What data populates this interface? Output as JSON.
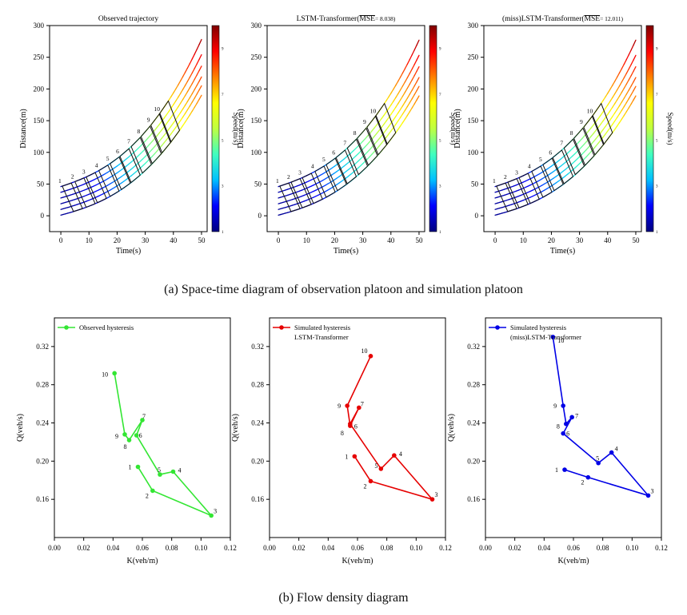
{
  "captions": {
    "a": "(a) Space-time diagram of observation platoon and simulation platoon",
    "b": "(b) Flow density diagram"
  },
  "colorbar": {
    "label": "Speed(m/s)",
    "tick_labels": [
      "1",
      "3",
      "5",
      "7",
      "9"
    ],
    "colors": [
      "#00007f",
      "#0000ff",
      "#00bfff",
      "#40ffbf",
      "#bfff40",
      "#ffff00",
      "#ff8000",
      "#ff0000",
      "#7f0000"
    ]
  },
  "chart_data": [
    {
      "type": "line",
      "title": "Observed trajectory",
      "xlabel": "Time(s)",
      "ylabel": "Distance(m)",
      "xlim": [
        -4,
        52
      ],
      "ylim": [
        -25,
        300
      ],
      "xticks": [
        "0",
        "10",
        "20",
        "30",
        "40",
        "50"
      ],
      "yticks": [
        "0",
        "50",
        "100",
        "150",
        "200",
        "250",
        "300"
      ],
      "vehicles": [
        "1",
        "2",
        "3",
        "4",
        "5",
        "6",
        "7",
        "8",
        "9",
        "10"
      ],
      "series": [
        {
          "name": "1",
          "start": 46
        },
        {
          "name": "2",
          "start": 37
        },
        {
          "name": "3",
          "start": 28
        },
        {
          "name": "4",
          "start": 19
        },
        {
          "name": "5",
          "start": 10
        },
        {
          "name": "6",
          "start": 1
        }
      ],
      "end_values": [
        278,
        254,
        236,
        219,
        205,
        190
      ],
      "box_times": [
        0.5,
        5,
        9,
        13.5,
        17.5,
        21,
        25,
        28.5,
        32,
        35
      ]
    },
    {
      "type": "line",
      "title": "LSTM-Transformer(",
      "title_mse": "MSE",
      "title_value": "= 8.038)",
      "xlabel": "Time(s)",
      "ylabel": "Distance(m)",
      "xlim": [
        -4,
        52
      ],
      "ylim": [
        -25,
        300
      ],
      "xticks": [
        "0",
        "10",
        "20",
        "30",
        "40",
        "50"
      ],
      "yticks": [
        "0",
        "50",
        "100",
        "150",
        "200",
        "250",
        "300"
      ],
      "vehicles": [
        "1",
        "2",
        "3",
        "4",
        "5",
        "6",
        "7",
        "8",
        "9",
        "10"
      ],
      "series": [
        {
          "name": "1",
          "start": 46
        },
        {
          "name": "2",
          "start": 37
        },
        {
          "name": "3",
          "start": 28
        },
        {
          "name": "4",
          "start": 19
        },
        {
          "name": "5",
          "start": 10
        },
        {
          "name": "6",
          "start": 1
        }
      ],
      "end_values": [
        277,
        253,
        235,
        218,
        204,
        189
      ],
      "box_times": [
        0.5,
        4.5,
        8.5,
        13,
        17,
        20.5,
        24.5,
        28,
        31.5,
        34.5
      ]
    },
    {
      "type": "line",
      "title": "(miss)LSTM-Transformer(",
      "title_mse": "MSE",
      "title_value": "= 12.011)",
      "xlabel": "Time(s)",
      "ylabel": "Distance(m)",
      "xlim": [
        -4,
        52
      ],
      "ylim": [
        -25,
        300
      ],
      "xticks": [
        "0",
        "10",
        "20",
        "30",
        "40",
        "50"
      ],
      "yticks": [
        "0",
        "50",
        "100",
        "150",
        "200",
        "250",
        "300"
      ],
      "vehicles": [
        "1",
        "2",
        "3",
        "4",
        "5",
        "6",
        "7",
        "8",
        "9",
        "10"
      ],
      "series": [
        {
          "name": "1",
          "start": 46
        },
        {
          "name": "2",
          "start": 37
        },
        {
          "name": "3",
          "start": 28
        },
        {
          "name": "4",
          "start": 19
        },
        {
          "name": "5",
          "start": 10
        },
        {
          "name": "6",
          "start": 1
        }
      ],
      "end_values": [
        277,
        253,
        235,
        218,
        204,
        189
      ],
      "box_times": [
        0.5,
        4.5,
        8.5,
        13,
        17,
        20.5,
        24.5,
        28,
        31.5,
        34.5
      ]
    },
    {
      "type": "line",
      "title": "Observed hysteresis",
      "legend": [
        "Observed hysteresis"
      ],
      "color": "#33e633",
      "xlabel": "K(veh/m)",
      "ylabel": "Q(veh/s)",
      "xlim": [
        0.0,
        0.12
      ],
      "ylim": [
        0.12,
        0.35
      ],
      "xticks": [
        "0.00",
        "0.02",
        "0.04",
        "0.06",
        "0.08",
        "0.10",
        "0.12"
      ],
      "yticks": [
        "0.16",
        "0.20",
        "0.24",
        "0.28",
        "0.32"
      ],
      "points": [
        {
          "label": "1",
          "k": 0.057,
          "q": 0.194
        },
        {
          "label": "2",
          "k": 0.067,
          "q": 0.169
        },
        {
          "label": "3",
          "k": 0.107,
          "q": 0.143
        },
        {
          "label": "4",
          "k": 0.081,
          "q": 0.189
        },
        {
          "label": "5",
          "k": 0.072,
          "q": 0.186
        },
        {
          "label": "6",
          "k": 0.056,
          "q": 0.227
        },
        {
          "label": "7",
          "k": 0.06,
          "q": 0.243
        },
        {
          "label": "8",
          "k": 0.051,
          "q": 0.222
        },
        {
          "label": "9",
          "k": 0.048,
          "q": 0.228
        },
        {
          "label": "10",
          "k": 0.041,
          "q": 0.292
        }
      ]
    },
    {
      "type": "line",
      "title": "Simulated hysteresis LSTM-Transformer",
      "legend": [
        "Simulated hysteresis",
        "LSTM-Transformer"
      ],
      "color": "#e60000",
      "xlabel": "K(veh/m)",
      "ylabel": "Q(veh/s)",
      "xlim": [
        0.0,
        0.12
      ],
      "ylim": [
        0.12,
        0.35
      ],
      "xticks": [
        "0.00",
        "0.02",
        "0.04",
        "0.06",
        "0.08",
        "0.10",
        "0.12"
      ],
      "yticks": [
        "0.16",
        "0.20",
        "0.24",
        "0.28",
        "0.32"
      ],
      "points": [
        {
          "label": "1",
          "k": 0.058,
          "q": 0.205
        },
        {
          "label": "2",
          "k": 0.069,
          "q": 0.179
        },
        {
          "label": "3",
          "k": 0.111,
          "q": 0.16
        },
        {
          "label": "4",
          "k": 0.085,
          "q": 0.206
        },
        {
          "label": "5",
          "k": 0.076,
          "q": 0.192
        },
        {
          "label": "6",
          "k": 0.055,
          "q": 0.239
        },
        {
          "label": "7",
          "k": 0.061,
          "q": 0.256
        },
        {
          "label": "8",
          "k": 0.055,
          "q": 0.237
        },
        {
          "label": "9",
          "k": 0.053,
          "q": 0.258
        },
        {
          "label": "10",
          "k": 0.069,
          "q": 0.31
        }
      ]
    },
    {
      "type": "line",
      "title": "Simulated hysteresis (miss)LSTM-Transformer",
      "legend": [
        "Simulated hysteresis",
        "(miss)LSTM-Transformer"
      ],
      "color": "#0000e6",
      "xlabel": "K(veh/m)",
      "ylabel": "Q(veh/s)",
      "xlim": [
        0.0,
        0.12
      ],
      "ylim": [
        0.12,
        0.35
      ],
      "xticks": [
        "0.00",
        "0.02",
        "0.04",
        "0.06",
        "0.08",
        "0.10",
        "0.12"
      ],
      "yticks": [
        "0.16",
        "0.20",
        "0.24",
        "0.28",
        "0.32"
      ],
      "points": [
        {
          "label": "1",
          "k": 0.054,
          "q": 0.191
        },
        {
          "label": "2",
          "k": 0.07,
          "q": 0.183
        },
        {
          "label": "3",
          "k": 0.111,
          "q": 0.164
        },
        {
          "label": "4",
          "k": 0.086,
          "q": 0.209
        },
        {
          "label": "5",
          "k": 0.077,
          "q": 0.198
        },
        {
          "label": "6",
          "k": 0.053,
          "q": 0.229
        },
        {
          "label": "7",
          "k": 0.059,
          "q": 0.246
        },
        {
          "label": "8",
          "k": 0.055,
          "q": 0.239
        },
        {
          "label": "9",
          "k": 0.053,
          "q": 0.258
        },
        {
          "label": "10",
          "k": 0.046,
          "q": 0.33
        }
      ]
    }
  ]
}
